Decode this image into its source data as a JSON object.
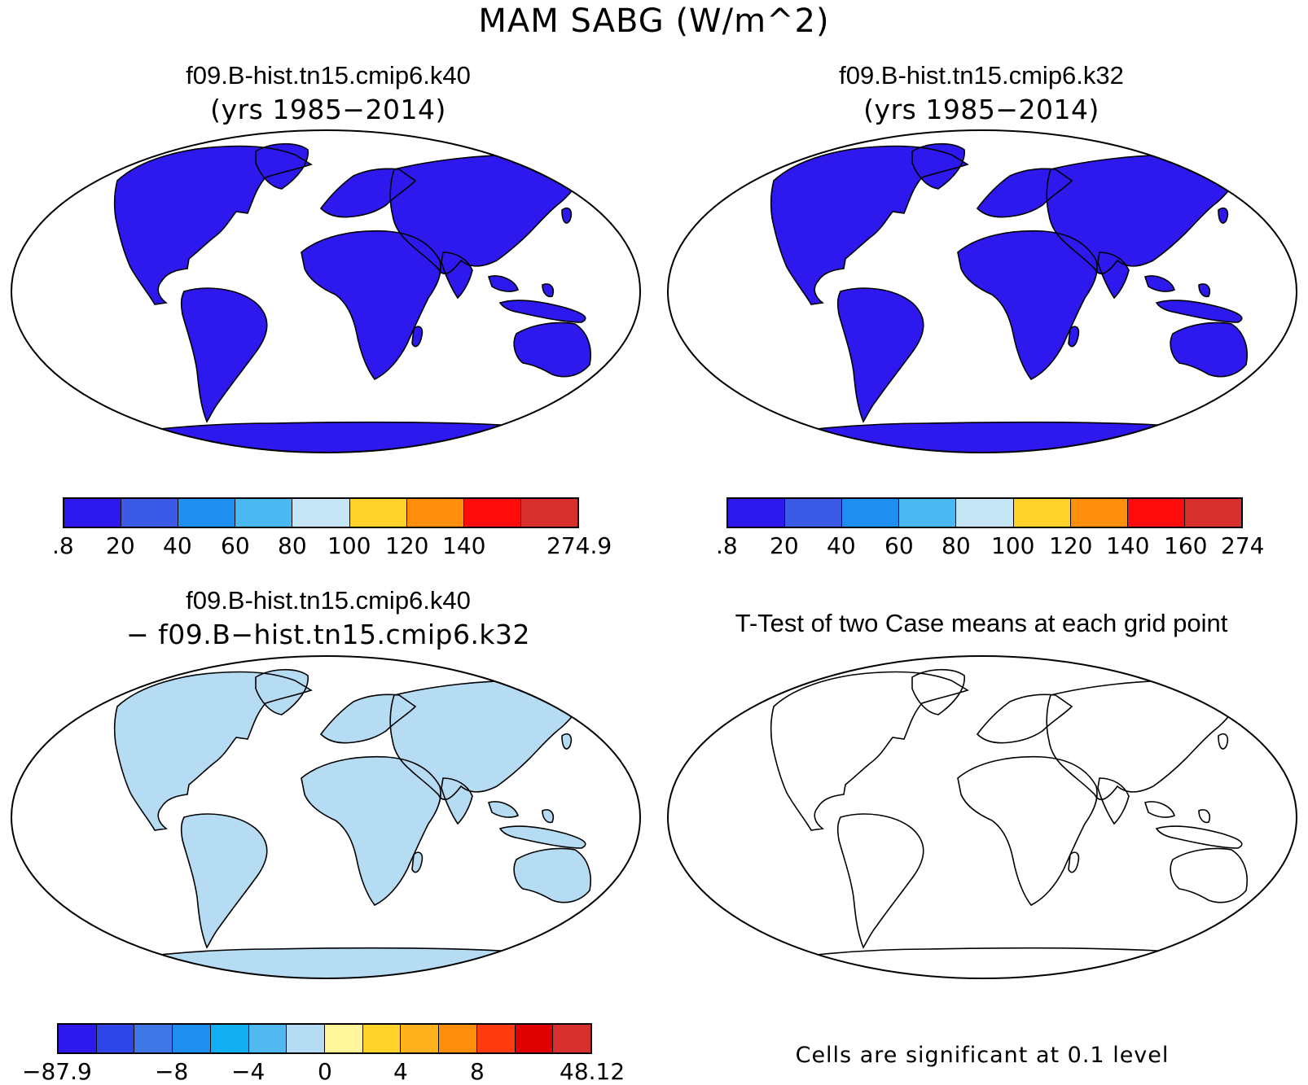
{
  "figure": {
    "main_title": "MAM SABG (W/m^2)"
  },
  "panels": [
    {
      "title": "f09.B-hist.tn15.cmip6.k40",
      "subtitle": "(yrs 1985−2014)",
      "colorbar": {
        "labels": [
          ".8",
          "20",
          "40",
          "60",
          "80",
          "100",
          "120",
          "140",
          "274.9"
        ],
        "colors": [
          "#2d19ee",
          "#3b5be6",
          "#1e8ff0",
          "#4ab9f2",
          "#c6e5f5",
          "#ffd22a",
          "#ff8e0c",
          "#ff0b0b",
          "#d82f2f"
        ]
      }
    },
    {
      "title": "f09.B-hist.tn15.cmip6.k32",
      "subtitle": "(yrs 1985−2014)",
      "colorbar": {
        "labels": [
          ".8",
          "20",
          "40",
          "60",
          "80",
          "100",
          "120",
          "140",
          "160",
          "274"
        ],
        "colors": [
          "#2d19ee",
          "#3b5be6",
          "#1e8ff0",
          "#4ab9f2",
          "#c6e5f5",
          "#ffd22a",
          "#ff8e0c",
          "#ff0b0b",
          "#d82f2f"
        ]
      }
    },
    {
      "title": "f09.B-hist.tn15.cmip6.k40",
      "subtitle": "− f09.B−hist.tn15.cmip6.k32",
      "colorbar": {
        "labels": [
          "−87.9",
          "−8",
          "−4",
          "0",
          "4",
          "8",
          "48.12"
        ],
        "colors": [
          "#2d19ee",
          "#2e45e8",
          "#3d78e6",
          "#1e8ff0",
          "#11aef2",
          "#52b8f0",
          "#b5dcf2",
          "#fff59a",
          "#ffd22a",
          "#ffb11e",
          "#ff8e0c",
          "#ff3b10",
          "#e00000",
          "#d82f2f"
        ]
      }
    },
    {
      "title": "T-Test of two Case means at each grid point",
      "note": "Cells are significant at 0.1 level"
    }
  ]
}
